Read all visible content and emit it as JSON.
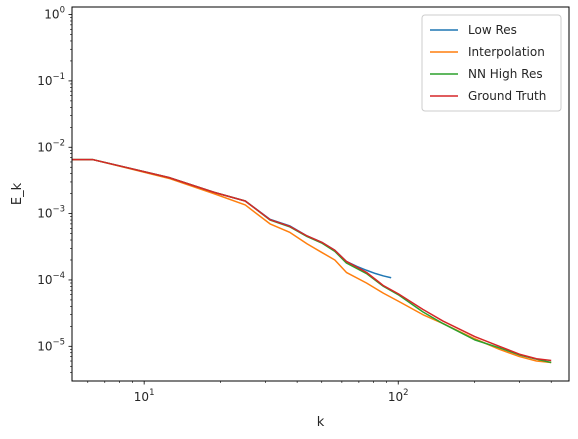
{
  "chart_data": {
    "type": "line",
    "title": "",
    "xlabel": "k",
    "ylabel": "E_k",
    "xscale": "log",
    "yscale": "log",
    "xlim": [
      5.2,
      470
    ],
    "ylim": [
      3e-06,
      1.3
    ],
    "grid": false,
    "legend_position": "top-right",
    "x_ticks": [
      {
        "value": 10,
        "base": "10",
        "exp": "1"
      },
      {
        "value": 100,
        "base": "10",
        "exp": "2"
      }
    ],
    "y_ticks": [
      {
        "value": 1e-05,
        "base": "10",
        "exp": "−5"
      },
      {
        "value": 0.0001,
        "base": "10",
        "exp": "−4"
      },
      {
        "value": 0.001,
        "base": "10",
        "exp": "−3"
      },
      {
        "value": 0.01,
        "base": "10",
        "exp": "−2"
      },
      {
        "value": 0.1,
        "base": "10",
        "exp": "−1"
      },
      {
        "value": 1,
        "base": "10",
        "exp": "0"
      }
    ],
    "series": [
      {
        "name": "Low Res",
        "color": "#1f77b4",
        "x": [
          5.2,
          6.3,
          12.5,
          18.8,
          25,
          31.3,
          37.5,
          43.8,
          50,
          56.3,
          62.5,
          68.8,
          75,
          81.3,
          87.5,
          93.8
        ],
        "y": [
          0.0065,
          0.0065,
          0.0035,
          0.0021,
          0.00155,
          0.00082,
          0.00065,
          0.00046,
          0.00037,
          0.00028,
          0.00019,
          0.00016,
          0.00014,
          0.000125,
          0.000115,
          0.000108
        ]
      },
      {
        "name": "Interpolation",
        "color": "#ff7f0e",
        "x": [
          5.2,
          6.3,
          12.5,
          18.8,
          25,
          31.3,
          37.5,
          43.8,
          50,
          56.3,
          62.5,
          75,
          87.5,
          100,
          125,
          150,
          200,
          250,
          300,
          350,
          400
        ],
        "y": [
          0.0065,
          0.0065,
          0.0034,
          0.002,
          0.00135,
          0.0007,
          0.00052,
          0.00035,
          0.00026,
          0.0002,
          0.00013,
          9e-05,
          6.3e-05,
          4.8e-05,
          3e-05,
          2.2e-05,
          1.3e-05,
          9e-06,
          7e-06,
          6e-06,
          5.7e-06
        ]
      },
      {
        "name": "NN High Res",
        "color": "#2ca02c",
        "x": [
          5.2,
          6.3,
          12.5,
          18.8,
          25,
          31.3,
          37.5,
          43.8,
          50,
          56.3,
          62.5,
          75,
          87.5,
          100,
          125,
          150,
          200,
          250,
          300,
          350,
          400
        ],
        "y": [
          0.0065,
          0.0065,
          0.0035,
          0.0021,
          0.00155,
          0.0008,
          0.00063,
          0.00045,
          0.00036,
          0.00027,
          0.00018,
          0.000125,
          8e-05,
          6e-05,
          3.3e-05,
          2.2e-05,
          1.25e-05,
          9.5e-06,
          7.4e-06,
          6.4e-06,
          5.7e-06
        ]
      },
      {
        "name": "Ground Truth",
        "color": "#d62728",
        "x": [
          5.2,
          6.3,
          12.5,
          18.8,
          25,
          31.3,
          37.5,
          43.8,
          50,
          56.3,
          62.5,
          75,
          87.5,
          100,
          125,
          150,
          200,
          250,
          300,
          350,
          400
        ],
        "y": [
          0.0065,
          0.0065,
          0.0035,
          0.0021,
          0.00155,
          0.00081,
          0.00064,
          0.00046,
          0.00037,
          0.00028,
          0.00019,
          0.00013,
          8.2e-05,
          6.2e-05,
          3.6e-05,
          2.4e-05,
          1.4e-05,
          1e-05,
          7.6e-06,
          6.5e-06,
          6.1e-06
        ]
      }
    ]
  }
}
